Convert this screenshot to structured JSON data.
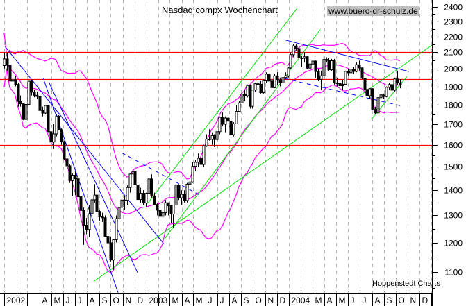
{
  "chart_data": {
    "type": "candlestick",
    "title": "Nasdaq compx Wochenchart",
    "watermark": "www.buero-dr-schulz.de",
    "source": "Hoppenstedt Charts",
    "y_scale": "log",
    "ylim": [
      1035,
      2450
    ],
    "xlim": [
      "2001-12-21",
      "2005-01-02"
    ],
    "yticks": [
      1100,
      1200,
      1300,
      1400,
      1500,
      1600,
      1700,
      1800,
      1900,
      2000,
      2100,
      2200,
      2300,
      2400
    ],
    "grid": "vertical dashed at month starts",
    "x_labels": [
      {
        "date": "2002-01-01",
        "label": "2002"
      },
      {
        "date": "2002-02-01",
        "label": ""
      },
      {
        "date": "2002-03-01",
        "label": ""
      },
      {
        "date": "2002-04-01",
        "label": "A"
      },
      {
        "date": "2002-05-01",
        "label": "M"
      },
      {
        "date": "2002-06-01",
        "label": "J"
      },
      {
        "date": "2002-07-01",
        "label": "J"
      },
      {
        "date": "2002-08-01",
        "label": "A"
      },
      {
        "date": "2002-09-01",
        "label": "S"
      },
      {
        "date": "2002-10-01",
        "label": "O"
      },
      {
        "date": "2002-11-01",
        "label": "N"
      },
      {
        "date": "2002-12-01",
        "label": "D"
      },
      {
        "date": "2003-01-01",
        "label": "2003"
      },
      {
        "date": "2003-02-01",
        "label": ""
      },
      {
        "date": "2003-03-01",
        "label": "M"
      },
      {
        "date": "2003-04-01",
        "label": "A"
      },
      {
        "date": "2003-05-01",
        "label": "M"
      },
      {
        "date": "2003-06-01",
        "label": "J"
      },
      {
        "date": "2003-07-01",
        "label": "J"
      },
      {
        "date": "2003-08-01",
        "label": "A"
      },
      {
        "date": "2003-09-01",
        "label": "S"
      },
      {
        "date": "2003-10-01",
        "label": "O"
      },
      {
        "date": "2003-11-01",
        "label": "N"
      },
      {
        "date": "2003-12-01",
        "label": "D"
      },
      {
        "date": "2004-01-01",
        "label": "2004"
      },
      {
        "date": "2004-02-01",
        "label": ""
      },
      {
        "date": "2004-03-01",
        "label": "M"
      },
      {
        "date": "2004-04-01",
        "label": "A"
      },
      {
        "date": "2004-05-01",
        "label": "M"
      },
      {
        "date": "2004-06-01",
        "label": "J"
      },
      {
        "date": "2004-07-01",
        "label": "J"
      },
      {
        "date": "2004-08-01",
        "label": "A"
      },
      {
        "date": "2004-09-01",
        "label": "S"
      },
      {
        "date": "2004-10-01",
        "label": "O"
      },
      {
        "date": "2004-11-01",
        "label": "N"
      },
      {
        "date": "2004-12-01",
        "label": "D"
      },
      {
        "date": "2005-01-01",
        "label": ""
      }
    ],
    "colors": {
      "candle_up": "#ffffff",
      "candle_down": "#000000",
      "bands": "#ff00ff",
      "support_resistance": "#ff0000",
      "trend_down": "#0000ff",
      "trend_up": "#00e000",
      "grid": "#b4b4b4",
      "watermark_bg": "#c0c0c0"
    },
    "bollinger_bands": {
      "period": 20,
      "std": 2
    },
    "horizontal_lines": [
      2100,
      1940,
      1600
    ],
    "trend_lines": [
      {
        "color": "blue",
        "style": "solid",
        "points": [
          [
            "2002-01-03",
            2136
          ],
          [
            "2003-02-15",
            1194
          ]
        ]
      },
      {
        "color": "blue",
        "style": "solid",
        "points": [
          [
            "2002-04-11",
            1945
          ],
          [
            "2002-10-20",
            1035
          ]
        ]
      },
      {
        "color": "blue",
        "style": "solid",
        "points": [
          [
            "2002-04-25",
            1925
          ],
          [
            "2002-12-09",
            1098
          ]
        ]
      },
      {
        "color": "blue",
        "style": "dashed",
        "points": [
          [
            "2002-10-29",
            1563
          ],
          [
            "2003-05-21",
            1377
          ]
        ]
      },
      {
        "color": "blue",
        "style": "solid",
        "points": [
          [
            "2003-12-19",
            2180
          ],
          [
            "2004-11-04",
            1985
          ]
        ]
      },
      {
        "color": "blue",
        "style": "dashed",
        "points": [
          [
            "2003-12-21",
            1945
          ],
          [
            "2004-10-19",
            1792
          ]
        ]
      },
      {
        "color": "green",
        "style": "solid",
        "points": [
          [
            "2003-01-04",
            1347
          ],
          [
            "2004-01-22",
            2390
          ]
        ]
      },
      {
        "color": "green",
        "style": "solid",
        "points": [
          [
            "2003-02-15",
            1211
          ],
          [
            "2004-03-21",
            2244
          ]
        ]
      },
      {
        "color": "green",
        "style": "solid",
        "points": [
          [
            "2002-08-19",
            1071
          ],
          [
            "2005-01-02",
            2145
          ]
        ]
      },
      {
        "color": "green",
        "style": "solid",
        "points": [
          [
            "2004-07-31",
            1727
          ],
          [
            "2004-10-30",
            1957
          ]
        ]
      }
    ],
    "candles_fields": [
      "date",
      "open",
      "high",
      "low",
      "close"
    ],
    "candles": [
      [
        "2002-01-04",
        2020,
        2100,
        2000,
        2060
      ],
      [
        "2002-01-11",
        2060,
        2098,
        1990,
        2022
      ],
      [
        "2002-01-18",
        2022,
        2040,
        1920,
        1930
      ],
      [
        "2002-01-25",
        1930,
        1960,
        1890,
        1937
      ],
      [
        "2002-02-01",
        1937,
        1960,
        1900,
        1911
      ],
      [
        "2002-02-08",
        1911,
        1920,
        1790,
        1818
      ],
      [
        "2002-02-15",
        1818,
        1850,
        1790,
        1805
      ],
      [
        "2002-02-22",
        1805,
        1810,
        1720,
        1724
      ],
      [
        "2002-03-01",
        1724,
        1810,
        1700,
        1802
      ],
      [
        "2002-03-08",
        1802,
        1930,
        1800,
        1929
      ],
      [
        "2002-03-15",
        1929,
        1935,
        1850,
        1868
      ],
      [
        "2002-03-22",
        1868,
        1880,
        1840,
        1851
      ],
      [
        "2002-03-29",
        1851,
        1870,
        1830,
        1845
      ],
      [
        "2002-04-05",
        1845,
        1865,
        1770,
        1770
      ],
      [
        "2002-04-12",
        1770,
        1790,
        1740,
        1756
      ],
      [
        "2002-04-19",
        1756,
        1800,
        1750,
        1796
      ],
      [
        "2002-04-26",
        1796,
        1800,
        1660,
        1663
      ],
      [
        "2002-05-03",
        1663,
        1680,
        1600,
        1613
      ],
      [
        "2002-05-10",
        1613,
        1700,
        1580,
        1652
      ],
      [
        "2002-05-17",
        1652,
        1750,
        1640,
        1741
      ],
      [
        "2002-05-24",
        1741,
        1745,
        1670,
        1673
      ],
      [
        "2002-05-31",
        1673,
        1680,
        1600,
        1615
      ],
      [
        "2002-06-07",
        1615,
        1620,
        1530,
        1535
      ],
      [
        "2002-06-14",
        1535,
        1550,
        1480,
        1504
      ],
      [
        "2002-06-21",
        1504,
        1510,
        1430,
        1440
      ],
      [
        "2002-06-28",
        1440,
        1470,
        1375,
        1463
      ],
      [
        "2002-07-05",
        1463,
        1480,
        1380,
        1448
      ],
      [
        "2002-07-12",
        1448,
        1455,
        1350,
        1373
      ],
      [
        "2002-07-19",
        1373,
        1380,
        1300,
        1319
      ],
      [
        "2002-07-26",
        1319,
        1330,
        1192,
        1263
      ],
      [
        "2002-08-02",
        1263,
        1290,
        1230,
        1247
      ],
      [
        "2002-08-09",
        1247,
        1340,
        1220,
        1306
      ],
      [
        "2002-08-16",
        1306,
        1400,
        1300,
        1361
      ],
      [
        "2002-08-23",
        1361,
        1425,
        1350,
        1380
      ],
      [
        "2002-08-30",
        1380,
        1385,
        1310,
        1315
      ],
      [
        "2002-09-06",
        1315,
        1320,
        1280,
        1295
      ],
      [
        "2002-09-13",
        1295,
        1310,
        1275,
        1291
      ],
      [
        "2002-09-20",
        1291,
        1300,
        1220,
        1222
      ],
      [
        "2002-09-27",
        1222,
        1240,
        1190,
        1199
      ],
      [
        "2002-10-04",
        1199,
        1220,
        1135,
        1140
      ],
      [
        "2002-10-11",
        1140,
        1210,
        1108,
        1210
      ],
      [
        "2002-10-18",
        1210,
        1300,
        1200,
        1287
      ],
      [
        "2002-10-25",
        1287,
        1335,
        1250,
        1331
      ],
      [
        "2002-11-01",
        1331,
        1370,
        1290,
        1360
      ],
      [
        "2002-11-08",
        1360,
        1375,
        1320,
        1359
      ],
      [
        "2002-11-15",
        1359,
        1420,
        1340,
        1411
      ],
      [
        "2002-11-22",
        1411,
        1470,
        1390,
        1468
      ],
      [
        "2002-11-29",
        1468,
        1490,
        1460,
        1479
      ],
      [
        "2002-12-06",
        1479,
        1522,
        1400,
        1422
      ],
      [
        "2002-12-13",
        1422,
        1430,
        1360,
        1362
      ],
      [
        "2002-12-20",
        1362,
        1410,
        1350,
        1387
      ],
      [
        "2002-12-27",
        1387,
        1400,
        1340,
        1348
      ],
      [
        "2003-01-03",
        1348,
        1390,
        1330,
        1387
      ],
      [
        "2003-01-10",
        1387,
        1450,
        1380,
        1447
      ],
      [
        "2003-01-17",
        1447,
        1467,
        1370,
        1376
      ],
      [
        "2003-01-24",
        1376,
        1390,
        1340,
        1342
      ],
      [
        "2003-01-31",
        1342,
        1350,
        1300,
        1320
      ],
      [
        "2003-02-07",
        1320,
        1345,
        1290,
        1296
      ],
      [
        "2003-02-14",
        1296,
        1340,
        1270,
        1310
      ],
      [
        "2003-02-21",
        1310,
        1360,
        1300,
        1349
      ],
      [
        "2003-02-28",
        1349,
        1350,
        1300,
        1337
      ],
      [
        "2003-03-07",
        1337,
        1340,
        1270,
        1305
      ],
      [
        "2003-03-14",
        1305,
        1340,
        1253,
        1340
      ],
      [
        "2003-03-21",
        1340,
        1430,
        1335,
        1421
      ],
      [
        "2003-03-28",
        1421,
        1425,
        1360,
        1369
      ],
      [
        "2003-04-04",
        1369,
        1400,
        1340,
        1383
      ],
      [
        "2003-04-11",
        1383,
        1400,
        1350,
        1358
      ],
      [
        "2003-04-18",
        1358,
        1430,
        1350,
        1425
      ],
      [
        "2003-04-25",
        1425,
        1440,
        1400,
        1434
      ],
      [
        "2003-05-02",
        1434,
        1520,
        1430,
        1502
      ],
      [
        "2003-05-09",
        1502,
        1530,
        1480,
        1520
      ],
      [
        "2003-05-16",
        1520,
        1560,
        1500,
        1538
      ],
      [
        "2003-05-23",
        1538,
        1570,
        1500,
        1510
      ],
      [
        "2003-05-30",
        1510,
        1600,
        1500,
        1595
      ],
      [
        "2003-06-06",
        1595,
        1650,
        1590,
        1627
      ],
      [
        "2003-06-13",
        1627,
        1675,
        1620,
        1626
      ],
      [
        "2003-06-20",
        1626,
        1660,
        1600,
        1644
      ],
      [
        "2003-06-27",
        1644,
        1650,
        1590,
        1625
      ],
      [
        "2003-07-04",
        1625,
        1700,
        1620,
        1663
      ],
      [
        "2003-07-11",
        1663,
        1740,
        1650,
        1735
      ],
      [
        "2003-07-18",
        1735,
        1760,
        1690,
        1700
      ],
      [
        "2003-07-25",
        1700,
        1740,
        1660,
        1731
      ],
      [
        "2003-08-01",
        1731,
        1750,
        1690,
        1715
      ],
      [
        "2003-08-08",
        1715,
        1720,
        1640,
        1648
      ],
      [
        "2003-08-15",
        1648,
        1710,
        1640,
        1702
      ],
      [
        "2003-08-22",
        1702,
        1800,
        1700,
        1765
      ],
      [
        "2003-08-29",
        1765,
        1820,
        1760,
        1810
      ],
      [
        "2003-09-05",
        1810,
        1880,
        1800,
        1858
      ],
      [
        "2003-09-12",
        1858,
        1880,
        1820,
        1848
      ],
      [
        "2003-09-19",
        1848,
        1910,
        1840,
        1905
      ],
      [
        "2003-09-26",
        1905,
        1910,
        1780,
        1792
      ],
      [
        "2003-10-03",
        1792,
        1880,
        1780,
        1880
      ],
      [
        "2003-10-10",
        1880,
        1920,
        1870,
        1915
      ],
      [
        "2003-10-17",
        1915,
        1940,
        1890,
        1912
      ],
      [
        "2003-10-24",
        1912,
        1930,
        1860,
        1865
      ],
      [
        "2003-10-31",
        1865,
        1940,
        1860,
        1932
      ],
      [
        "2003-11-07",
        1932,
        1980,
        1920,
        1970
      ],
      [
        "2003-11-14",
        1970,
        1990,
        1920,
        1930
      ],
      [
        "2003-11-21",
        1930,
        1940,
        1880,
        1893
      ],
      [
        "2003-11-28",
        1893,
        1970,
        1890,
        1960
      ],
      [
        "2003-12-05",
        1960,
        1980,
        1910,
        1937
      ],
      [
        "2003-12-12",
        1937,
        1950,
        1900,
        1920
      ],
      [
        "2003-12-19",
        1920,
        1960,
        1910,
        1950
      ],
      [
        "2003-12-26",
        1950,
        1980,
        1940,
        1960
      ],
      [
        "2004-01-02",
        1960,
        2010,
        1950,
        2006
      ],
      [
        "2004-01-09",
        2006,
        2100,
        2000,
        2086
      ],
      [
        "2004-01-16",
        2086,
        2150,
        2070,
        2140
      ],
      [
        "2004-01-23",
        2140,
        2153,
        2110,
        2124
      ],
      [
        "2004-01-30",
        2124,
        2130,
        2040,
        2066
      ],
      [
        "2004-02-06",
        2066,
        2080,
        2010,
        2064
      ],
      [
        "2004-02-13",
        2064,
        2100,
        2040,
        2073
      ],
      [
        "2004-02-20",
        2073,
        2080,
        2000,
        2005
      ],
      [
        "2004-02-27",
        2005,
        2050,
        2000,
        2029
      ],
      [
        "2004-03-05",
        2029,
        2070,
        2020,
        2047
      ],
      [
        "2004-03-12",
        2047,
        2050,
        1950,
        1985
      ],
      [
        "2004-03-19",
        1985,
        2000,
        1930,
        1940
      ],
      [
        "2004-03-26",
        1940,
        1990,
        1880,
        1960
      ],
      [
        "2004-04-02",
        1960,
        2070,
        1950,
        2057
      ],
      [
        "2004-04-09",
        2057,
        2070,
        2040,
        2052
      ],
      [
        "2004-04-16",
        2052,
        2065,
        1990,
        1995
      ],
      [
        "2004-04-23",
        1995,
        2060,
        1990,
        2049
      ],
      [
        "2004-04-30",
        2049,
        2060,
        1910,
        1920
      ],
      [
        "2004-05-07",
        1920,
        1950,
        1900,
        1917
      ],
      [
        "2004-05-14",
        1917,
        1925,
        1870,
        1904
      ],
      [
        "2004-05-21",
        1904,
        1935,
        1880,
        1912
      ],
      [
        "2004-05-28",
        1912,
        1990,
        1910,
        1986
      ],
      [
        "2004-06-04",
        1986,
        2000,
        1960,
        1978
      ],
      [
        "2004-06-11",
        1978,
        2000,
        1960,
        1999
      ],
      [
        "2004-06-18",
        1999,
        2010,
        1970,
        1986
      ],
      [
        "2004-06-25",
        1986,
        2040,
        1980,
        2025
      ],
      [
        "2004-07-02",
        2025,
        2050,
        1990,
        2006
      ],
      [
        "2004-07-09",
        2006,
        2010,
        1940,
        1946
      ],
      [
        "2004-07-16",
        1946,
        1960,
        1880,
        1883
      ],
      [
        "2004-07-23",
        1883,
        1900,
        1840,
        1849
      ],
      [
        "2004-07-30",
        1849,
        1890,
        1830,
        1887
      ],
      [
        "2004-08-06",
        1887,
        1890,
        1770,
        1777
      ],
      [
        "2004-08-13",
        1777,
        1790,
        1750,
        1757
      ],
      [
        "2004-08-20",
        1757,
        1840,
        1750,
        1838
      ],
      [
        "2004-08-27",
        1838,
        1860,
        1820,
        1853
      ],
      [
        "2004-09-03",
        1853,
        1860,
        1830,
        1844
      ],
      [
        "2004-09-10",
        1844,
        1900,
        1840,
        1895
      ],
      [
        "2004-09-17",
        1895,
        1920,
        1880,
        1910
      ],
      [
        "2004-09-24",
        1910,
        1920,
        1860,
        1879
      ],
      [
        "2004-10-01",
        1879,
        1950,
        1870,
        1942
      ],
      [
        "2004-10-08",
        1942,
        1990,
        1910,
        1920
      ],
      [
        "2004-10-15",
        1920,
        1940,
        1890,
        1911
      ]
    ]
  }
}
